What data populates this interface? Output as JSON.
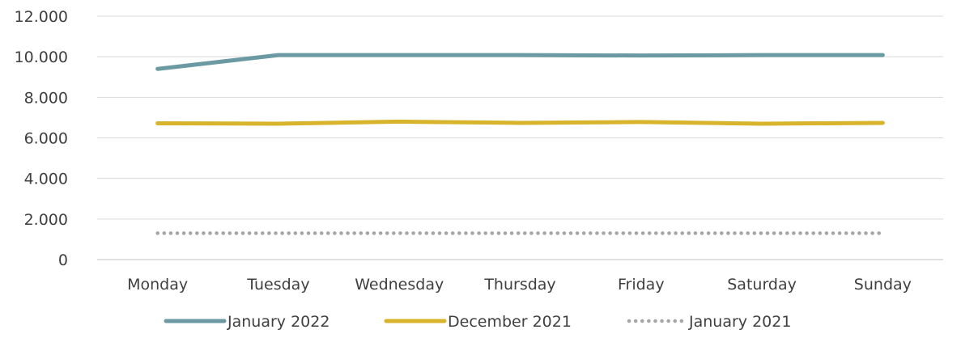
{
  "chart_data": {
    "type": "line",
    "title": "",
    "xlabel": "",
    "ylabel": "",
    "categories": [
      "Monday",
      "Tuesday",
      "Wednesday",
      "Thursday",
      "Friday",
      "Saturday",
      "Sunday"
    ],
    "ylim": [
      0,
      12000
    ],
    "yticks": [
      0,
      2000,
      4000,
      6000,
      8000,
      10000,
      12000
    ],
    "ytick_labels": [
      "0",
      "2.000",
      "4.000",
      "6.000",
      "8.000",
      "10.000",
      "12.000"
    ],
    "grid": "horizontal",
    "legend_position": "bottom",
    "series": [
      {
        "name": "January 2022",
        "color": "#6b9aa3",
        "style": "solid",
        "values": [
          9400,
          10080,
          10080,
          10080,
          10060,
          10080,
          10080
        ]
      },
      {
        "name": "December 2021",
        "color": "#d8b32c",
        "style": "solid",
        "values": [
          6720,
          6700,
          6800,
          6740,
          6780,
          6700,
          6740
        ]
      },
      {
        "name": "January 2021",
        "color": "#a6a6a6",
        "style": "dotted",
        "values": [
          1300,
          1300,
          1300,
          1300,
          1300,
          1300,
          1300
        ]
      }
    ]
  }
}
